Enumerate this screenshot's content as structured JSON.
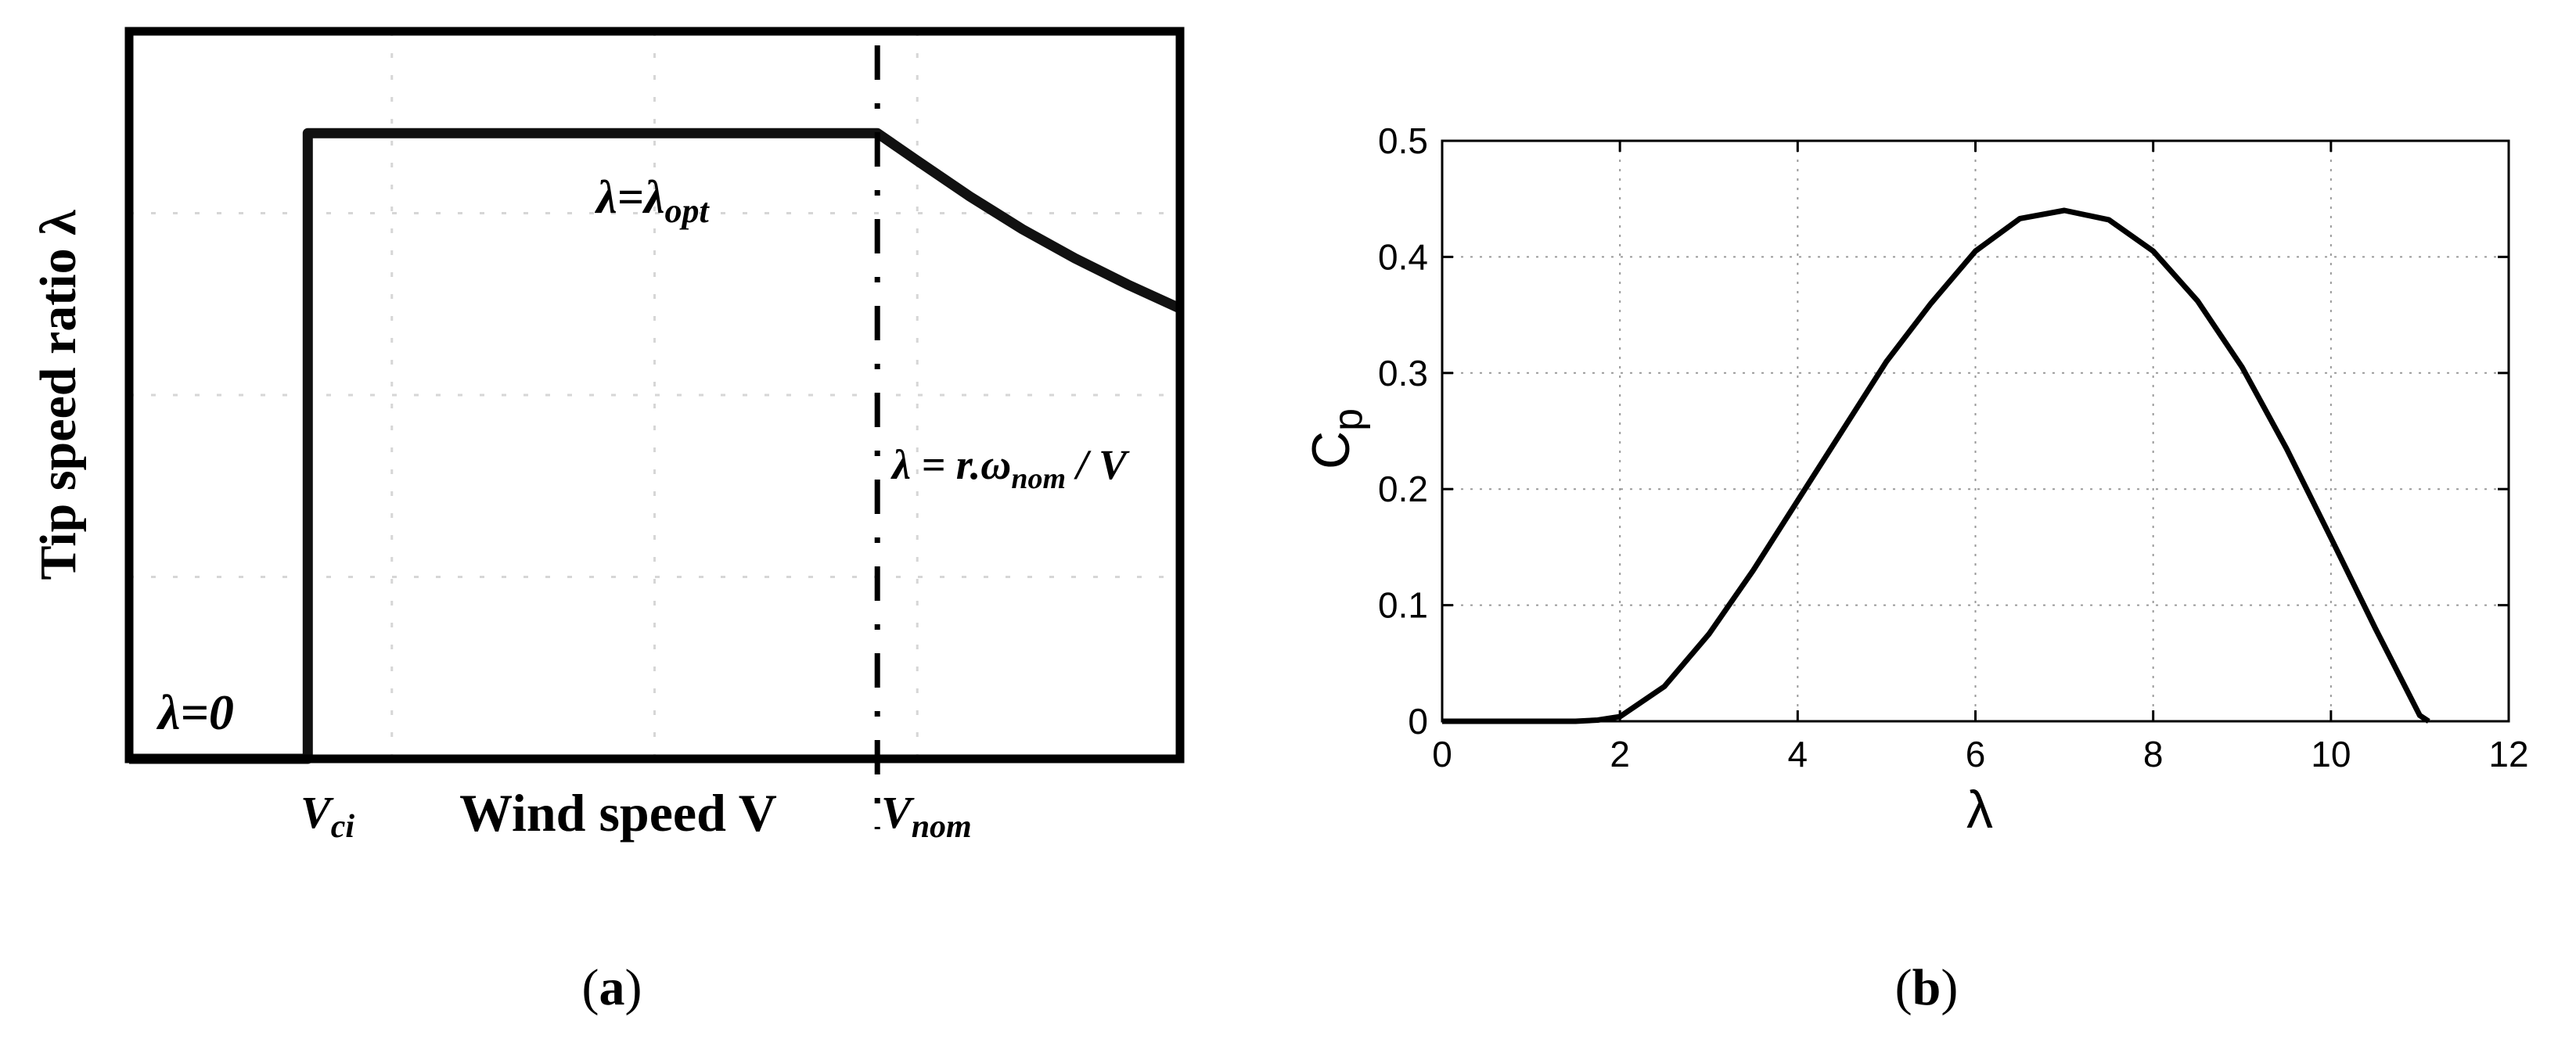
{
  "panel_a": {
    "caption": "a",
    "y_label": "Tip speed ratio λ",
    "x_label": "Wind speed V",
    "x_tick_vci_main": "V",
    "x_tick_vci_sub": "ci",
    "x_tick_vnom_main": "V",
    "x_tick_vnom_sub": "nom",
    "annotation_zero": "λ=0",
    "annotation_opt_main": "λ=λ",
    "annotation_opt_sub": "opt",
    "annotation_nom_pre": "λ = r.ω",
    "annotation_nom_sub": "nom",
    "annotation_nom_post": " / V"
  },
  "panel_b": {
    "caption": "b",
    "y_label_main": "C",
    "y_label_sub": "p",
    "x_label": "λ"
  },
  "chart_data": [
    {
      "type": "line",
      "panel": "a",
      "series": [
        {
          "x": [
            0,
            0.17,
            0.17,
            0.712,
            0.75,
            0.8,
            0.85,
            0.9,
            0.95,
            1.0
          ],
          "y": [
            0,
            0,
            0.86,
            0.86,
            0.822,
            0.773,
            0.728,
            0.688,
            0.652,
            0.619
          ]
        }
      ],
      "xlim": [
        0,
        1
      ],
      "ylim": [
        0,
        1
      ],
      "vertical_line_at": 0.712,
      "grid": true,
      "color": "#111111"
    },
    {
      "type": "line",
      "panel": "b",
      "series": [
        {
          "x": [
            0,
            0.5,
            1,
            1.5,
            1.75,
            2,
            2.5,
            3,
            3.5,
            4,
            4.5,
            5,
            5.5,
            6,
            6.5,
            7,
            7.5,
            8,
            8.5,
            9,
            9.5,
            10,
            10.5,
            11,
            11.1
          ],
          "y": [
            0,
            0,
            0,
            0,
            0.001,
            0.004,
            0.03,
            0.075,
            0.13,
            0.19,
            0.25,
            0.31,
            0.36,
            0.405,
            0.433,
            0.44,
            0.432,
            0.405,
            0.362,
            0.305,
            0.235,
            0.158,
            0.08,
            0.005,
            0
          ]
        }
      ],
      "xlim": [
        0,
        12
      ],
      "ylim": [
        0,
        0.5
      ],
      "xticks": [
        0,
        2,
        4,
        6,
        8,
        10,
        12
      ],
      "yticks": [
        0,
        0.1,
        0.2,
        0.3,
        0.4,
        0.5
      ],
      "grid": true,
      "color": "#000000"
    }
  ]
}
